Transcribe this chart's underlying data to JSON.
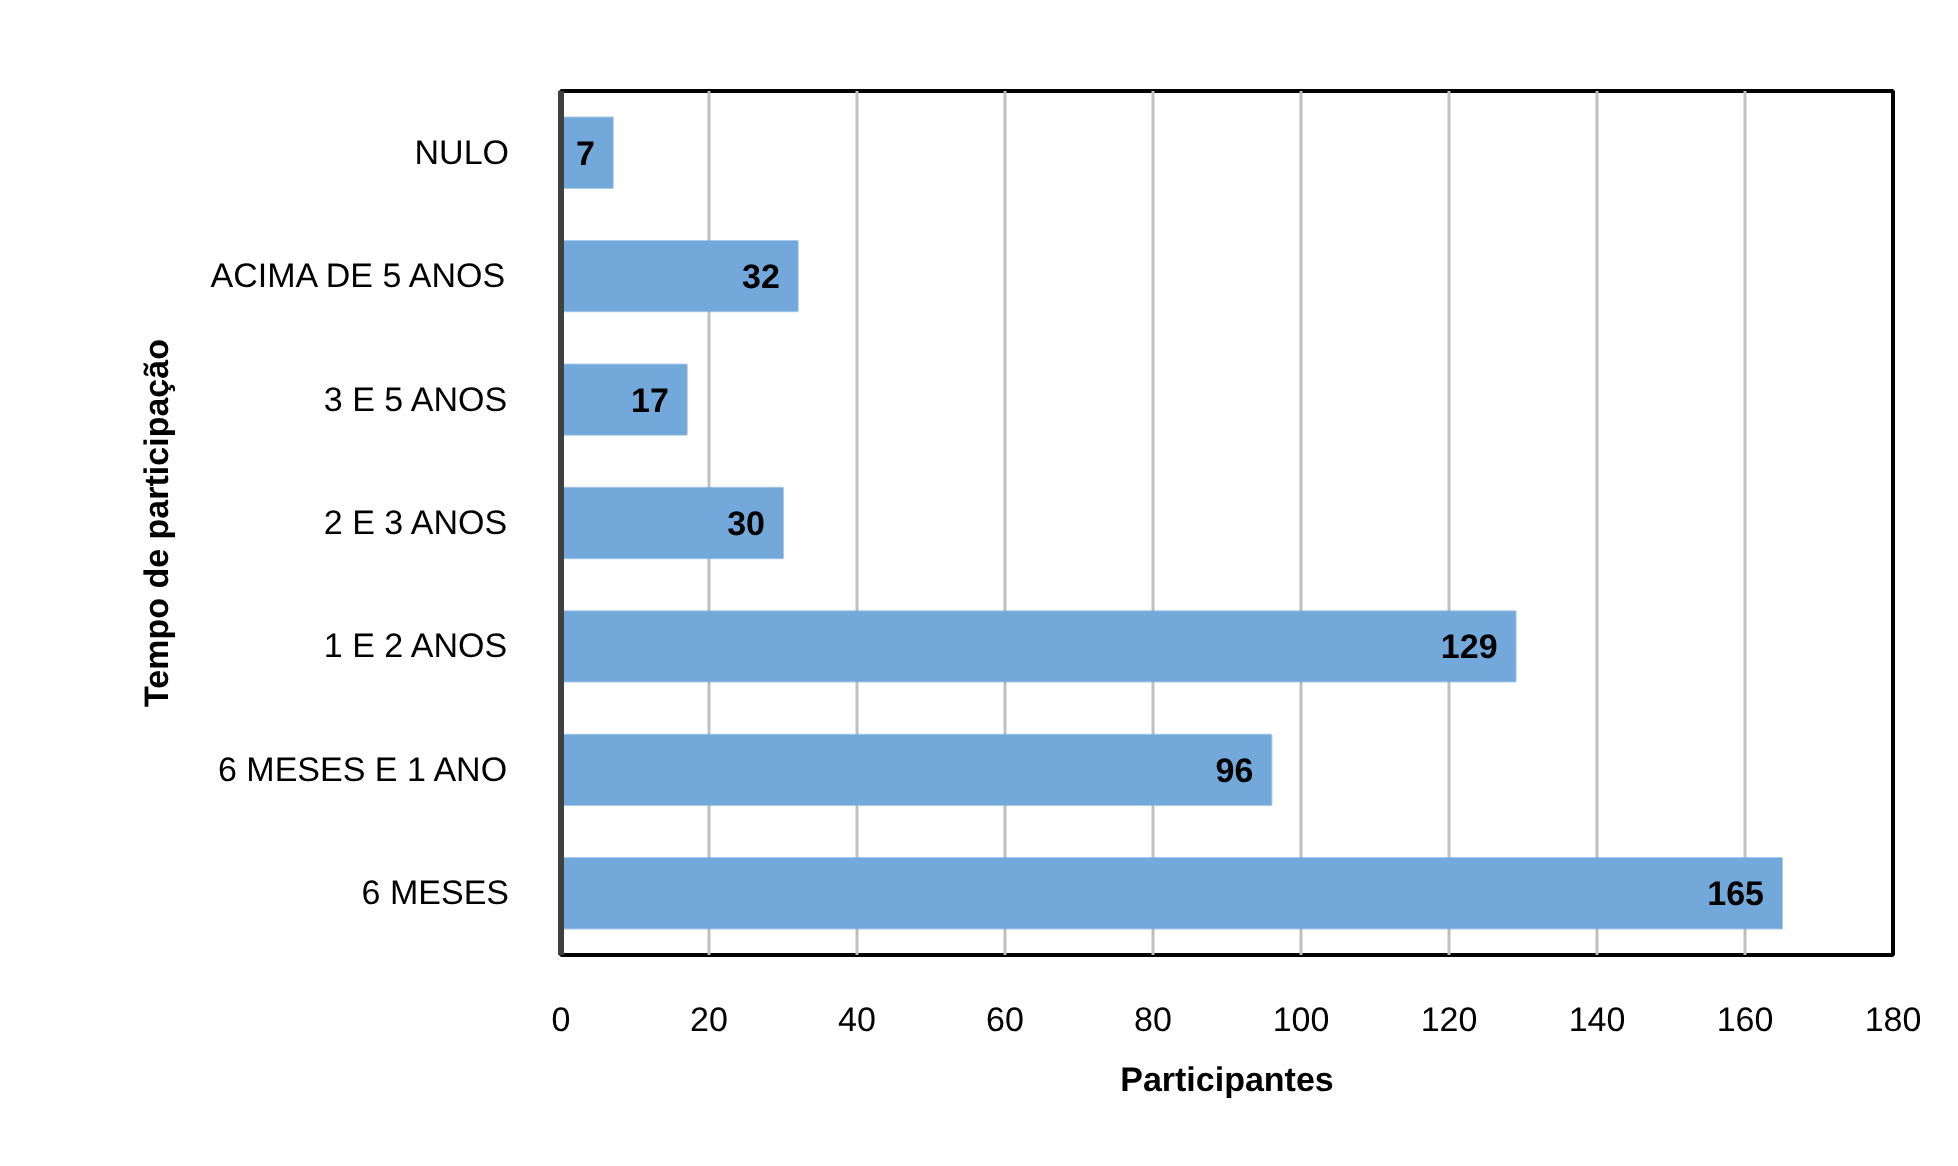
{
  "chart_data": {
    "type": "bar",
    "orientation": "horizontal",
    "categories": [
      "NULO",
      "ACIMA DE 5 ANOS",
      "3 E 5 ANOS",
      "2 E 3 ANOS",
      "1 E 2 ANOS",
      "6 MESES E 1 ANO",
      "6 MESES"
    ],
    "values": [
      7,
      32,
      17,
      30,
      129,
      96,
      165
    ],
    "color": "#72a8da",
    "xlabel": "Participantes",
    "ylabel": "Tempo de participação",
    "xlim": [
      0,
      180
    ],
    "xticks": [
      0,
      20,
      40,
      60,
      80,
      100,
      120,
      140,
      160,
      180
    ],
    "grid": "x",
    "data_labels": true
  }
}
